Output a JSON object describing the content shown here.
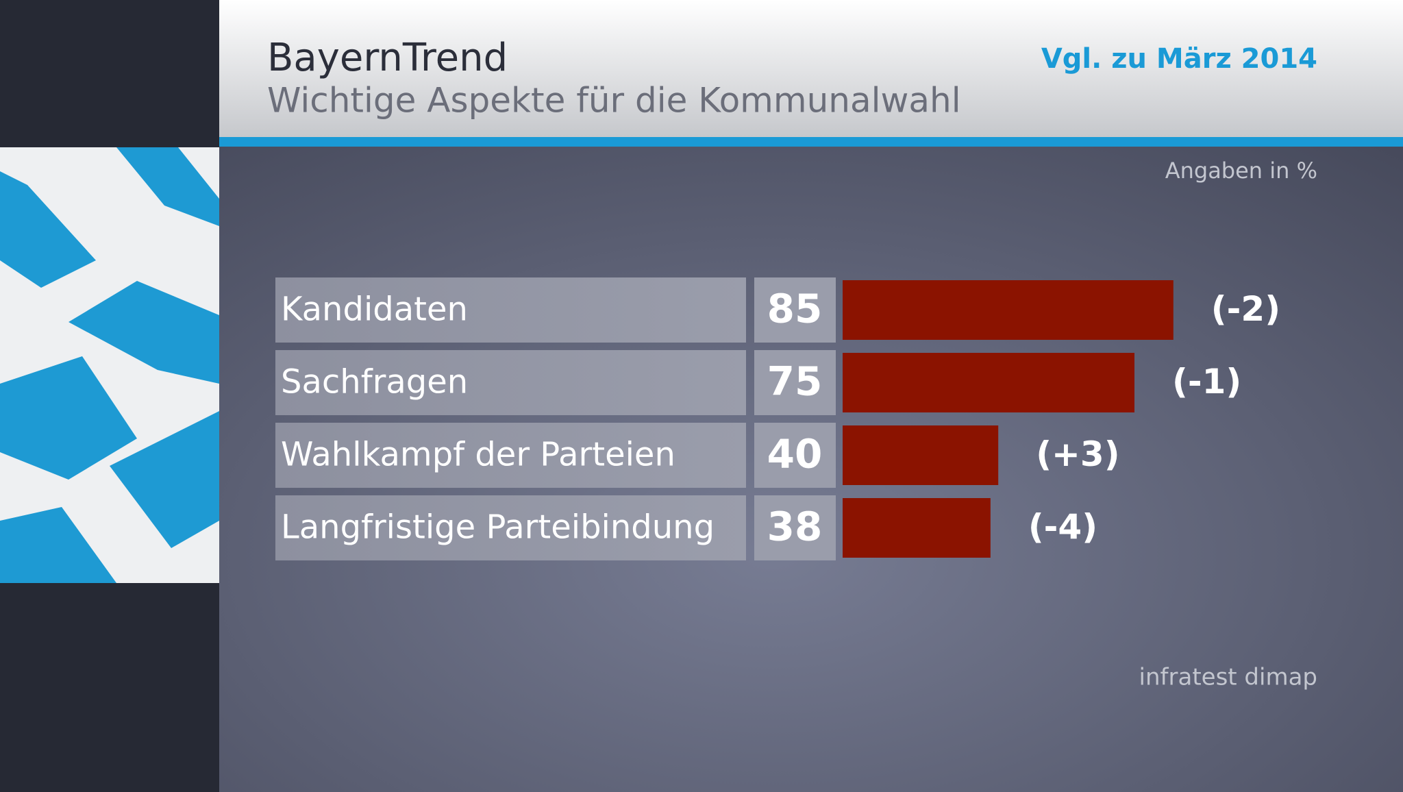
{
  "chart_data": {
    "type": "bar",
    "title": "BayernTrend",
    "subtitle": "Wichtige Aspekte für die Kommunalwahl",
    "comparison": "Vgl. zu März 2014",
    "unit_note": "Angaben in %",
    "source": "infratest dimap",
    "categories": [
      "Kandidaten",
      "Sachfragen",
      "Wahlkampf der Parteien",
      "Langfristige Parteibindung"
    ],
    "values": [
      85,
      75,
      40,
      38
    ],
    "color": "#8b1300",
    "changes": {
      "values": [
        -2,
        -1,
        3,
        -4
      ],
      "value_labels": [
        "(-2)",
        "(-1)",
        "(+3)",
        "(-4)"
      ]
    }
  }
}
